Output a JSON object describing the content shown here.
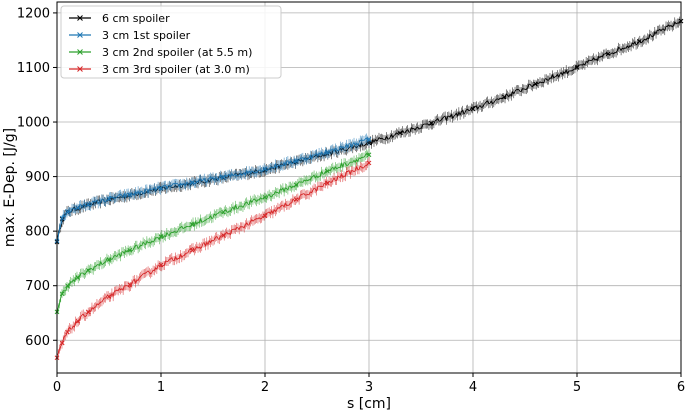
{
  "chart_data": {
    "type": "line",
    "title": "",
    "xlabel": "s [cm]",
    "ylabel": "max. E-Dep. [J/g]",
    "xlim": [
      0,
      6
    ],
    "ylim": [
      540,
      1220
    ],
    "xticks": [
      "0",
      "1",
      "2",
      "3",
      "4",
      "5",
      "6"
    ],
    "yticks": [
      "600",
      "700",
      "800",
      "900",
      "1000",
      "1100",
      "1200"
    ],
    "grid": true,
    "legend_position": "top-left",
    "markers": "x with error bars",
    "series": [
      {
        "name": "6 cm spoiler",
        "color": "#000000",
        "x": [
          0,
          0.05,
          0.1,
          0.2,
          0.3,
          0.5,
          0.7,
          1.0,
          1.3,
          1.6,
          2.0,
          2.3,
          2.6,
          3.0,
          3.3,
          3.6,
          4.0,
          4.3,
          4.6,
          5.0,
          5.3,
          5.6,
          6.0
        ],
        "y": [
          780,
          822,
          835,
          842,
          848,
          858,
          866,
          878,
          888,
          898,
          912,
          927,
          942,
          962,
          980,
          998,
          1024,
          1046,
          1070,
          1100,
          1125,
          1148,
          1185
        ]
      },
      {
        "name": "3 cm 1st spoiler",
        "color": "#1f77b4",
        "x": [
          0,
          0.05,
          0.1,
          0.2,
          0.3,
          0.5,
          0.7,
          1.0,
          1.3,
          1.6,
          2.0,
          2.3,
          2.6,
          3.0
        ],
        "y": [
          782,
          824,
          836,
          843,
          849,
          859,
          867,
          879,
          889,
          899,
          914,
          929,
          945,
          968
        ]
      },
      {
        "name": "3 cm 2nd spoiler (at 5.5 m)",
        "color": "#2ca02c",
        "x": [
          0,
          0.05,
          0.1,
          0.2,
          0.3,
          0.5,
          0.7,
          1.0,
          1.3,
          1.6,
          2.0,
          2.3,
          2.6,
          3.0
        ],
        "y": [
          652,
          685,
          700,
          715,
          728,
          748,
          765,
          790,
          812,
          835,
          862,
          885,
          910,
          940
        ]
      },
      {
        "name": "3 cm 3rd spoiler (at 3.0 m)",
        "color": "#d62728",
        "x": [
          0,
          0.05,
          0.1,
          0.2,
          0.3,
          0.5,
          0.7,
          1.0,
          1.3,
          1.6,
          2.0,
          2.3,
          2.6,
          3.0
        ],
        "y": [
          568,
          595,
          615,
          635,
          652,
          680,
          702,
          738,
          765,
          792,
          828,
          858,
          888,
          925
        ]
      }
    ]
  }
}
